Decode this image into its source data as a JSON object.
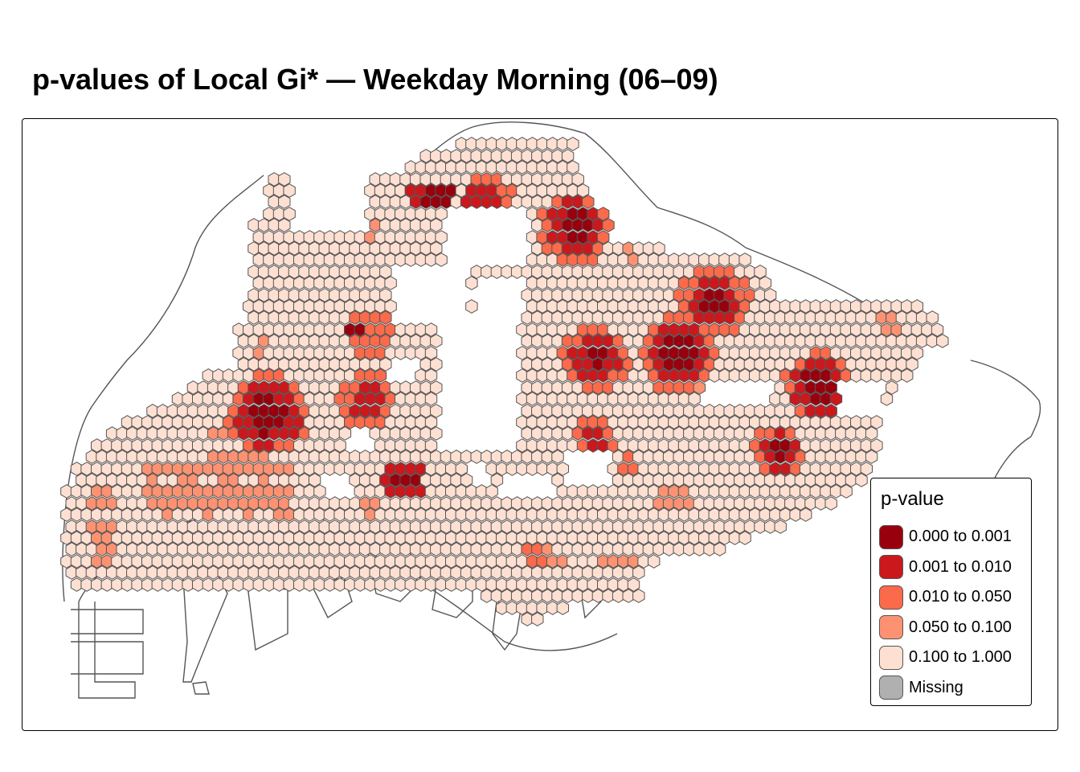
{
  "title": "p-values of Local Gi* — Weekday Morning (06–09)",
  "colors": {
    "c0": "#99000d",
    "c1": "#cb181d",
    "c2": "#fb6a4a",
    "c3": "#fc9272",
    "c4": "#fee0d2",
    "missing": "#b0b0b0",
    "hex_stroke": "#555555",
    "coast": "#555555"
  },
  "legend": {
    "title": "p-value",
    "items": [
      {
        "label": "0.000 to 0.001",
        "color": "#99000d"
      },
      {
        "label": "0.001 to 0.010",
        "color": "#cb181d"
      },
      {
        "label": "0.010 to 0.050",
        "color": "#fb6a4a"
      },
      {
        "label": "0.050 to 0.100",
        "color": "#fc9272"
      },
      {
        "label": "0.100 to 1.000",
        "color": "#fee0d2"
      },
      {
        "label": "Missing",
        "color": "#b0b0b0"
      }
    ]
  }
}
